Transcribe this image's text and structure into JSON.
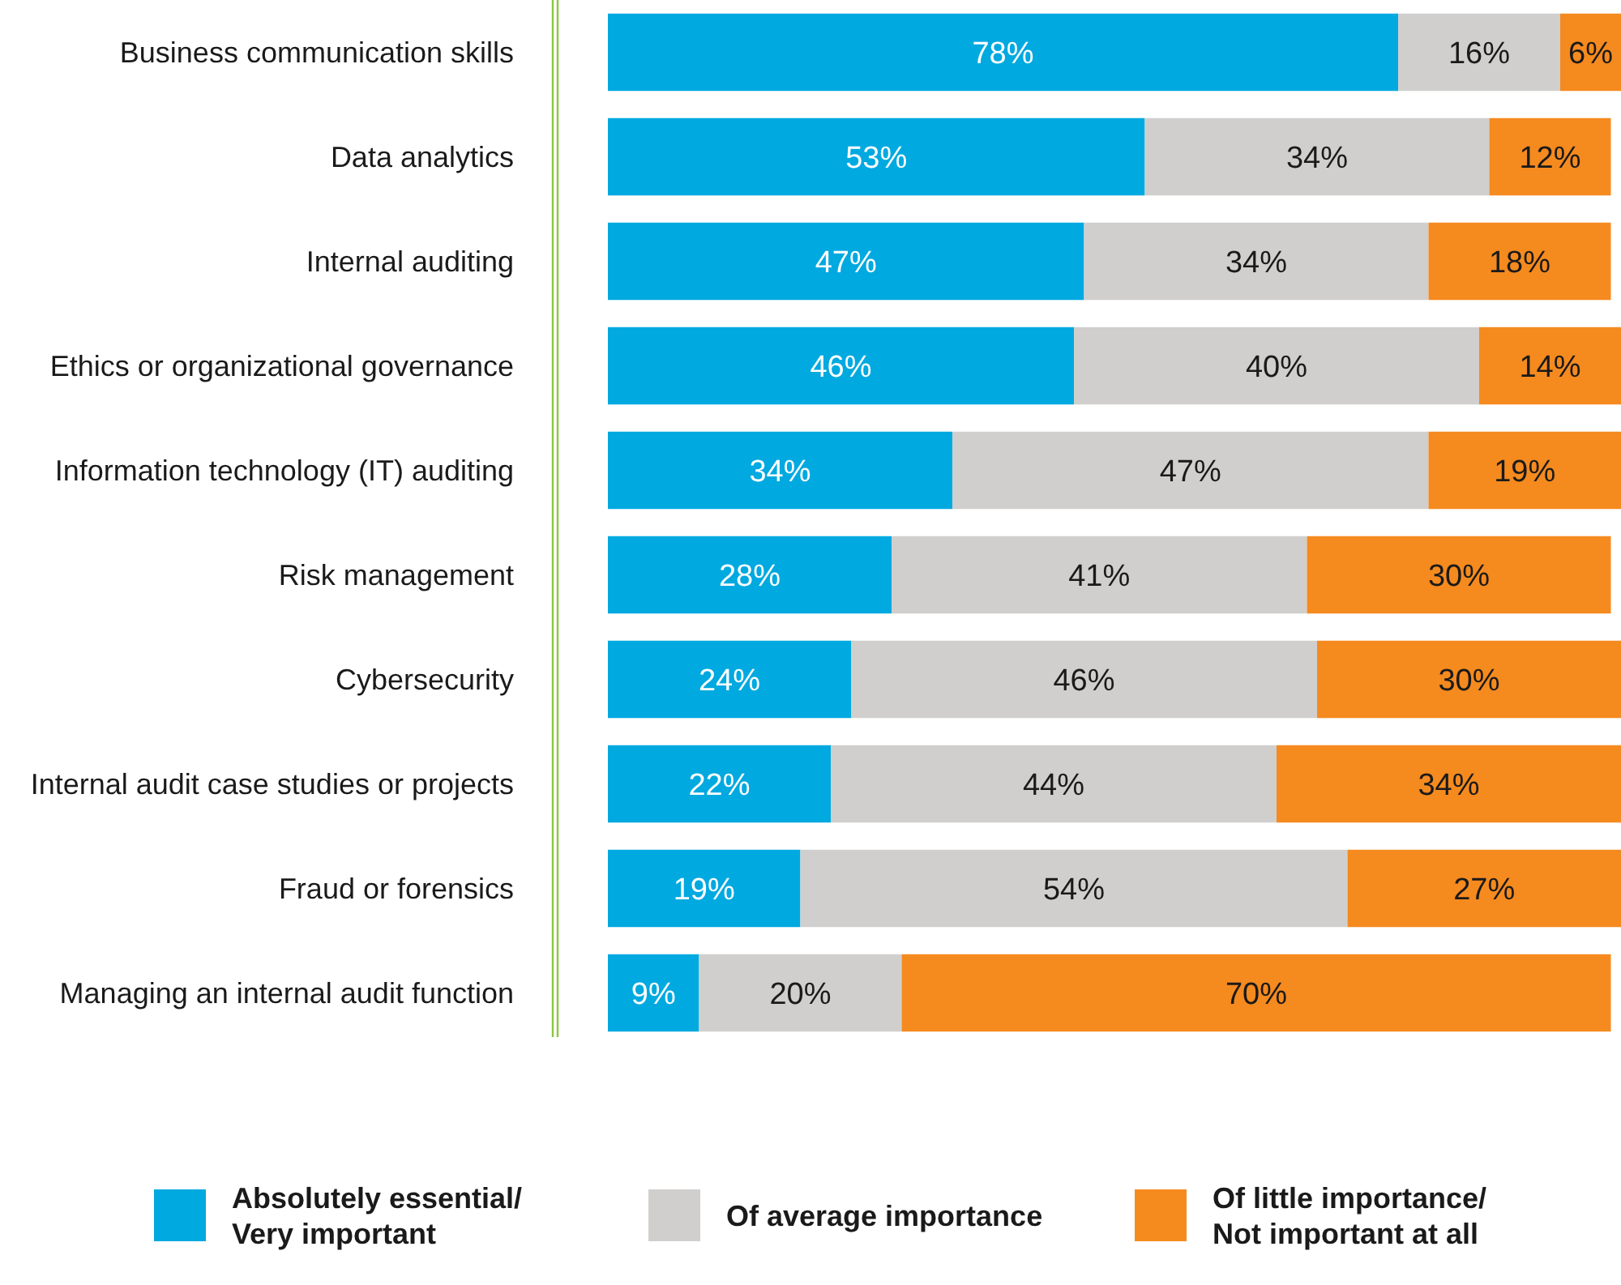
{
  "chart_data": {
    "type": "bar",
    "orientation": "horizontal",
    "stacked": true,
    "categories": [
      "Business communication skills",
      "Data analytics",
      "Internal auditing",
      "Ethics or organizational governance",
      "Information technology (IT) auditing",
      "Risk management",
      "Cybersecurity",
      "Internal audit case studies or projects",
      "Fraud or forensics",
      "Managing an internal audit function"
    ],
    "series": [
      {
        "name": "Absolutely essential/ Very important",
        "color": "#00a9e0",
        "values": [
          78,
          53,
          47,
          46,
          34,
          28,
          24,
          22,
          19,
          9
        ],
        "value_labels": [
          "78%",
          "53%",
          "47%",
          "46%",
          "34%",
          "28%",
          "24%",
          "22%",
          "19%",
          "9%"
        ]
      },
      {
        "name": "Of average importance",
        "color": "#d0cfcd",
        "values": [
          16,
          34,
          34,
          40,
          47,
          41,
          46,
          44,
          54,
          20
        ],
        "value_labels": [
          "16%",
          "34%",
          "34%",
          "40%",
          "47%",
          "41%",
          "46%",
          "44%",
          "54%",
          "20%"
        ]
      },
      {
        "name": "Of little importance/ Not important at all",
        "color": "#f58a1f",
        "values": [
          6,
          12,
          18,
          14,
          19,
          30,
          30,
          34,
          27,
          70
        ],
        "value_labels": [
          "6%",
          "12%",
          "18%",
          "14%",
          "19%",
          "30%",
          "30%",
          "34%",
          "27%",
          "70%"
        ]
      }
    ],
    "xlim": [
      0,
      100
    ],
    "tick_labels": "y",
    "legend": "bottom"
  }
}
